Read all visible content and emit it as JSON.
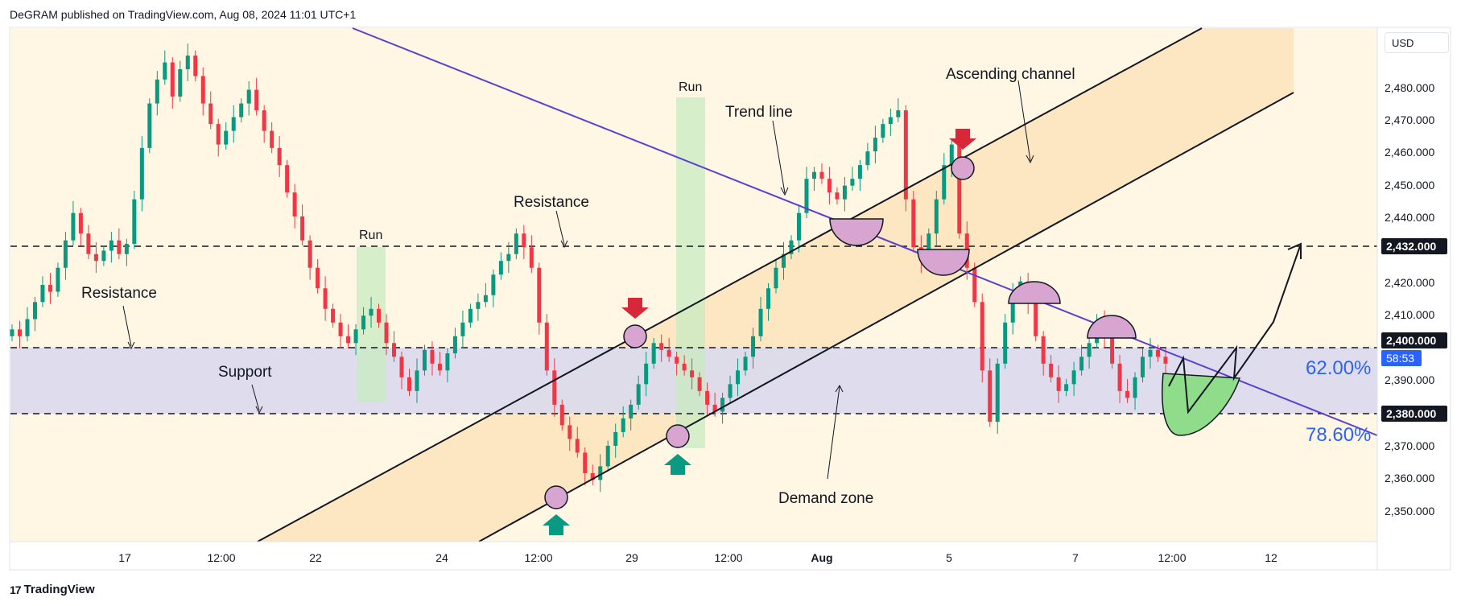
{
  "header": {
    "publish_line": "DeGRAM published on TradingView.com, Aug 08, 2024 11:01 UTC+1"
  },
  "footer": {
    "logo_text": "TradingView"
  },
  "toolbar": {
    "currency_label": "USD"
  },
  "colors": {
    "up": "#089981",
    "down": "#f23645",
    "trendline": "#5b3fd1",
    "channel_fill": "#fde6bf",
    "zone_fill": "#d9d8ee",
    "run_fill": "#c8ebc0",
    "circle_fill": "#d7a5cf",
    "green_arc": "#8fdc8a",
    "fib_text": "#2962ff",
    "badge_bg": "#131722",
    "badge_blue": "#2962ff"
  },
  "chart_data": {
    "type": "candlestick",
    "symbol_currency": "USD",
    "ylim": [
      2340,
      2490
    ],
    "y_ticks": [
      {
        "value": 2350,
        "label": "2,350.000"
      },
      {
        "value": 2360,
        "label": "2,360.000"
      },
      {
        "value": 2370,
        "label": "2,370.000"
      },
      {
        "value": 2390,
        "label": "2,390.000"
      },
      {
        "value": 2410,
        "label": "2,410.000"
      },
      {
        "value": 2420,
        "label": "2,420.000"
      },
      {
        "value": 2440,
        "label": "2,440.000"
      },
      {
        "value": 2450,
        "label": "2,450.000"
      },
      {
        "value": 2460,
        "label": "2,460.000"
      },
      {
        "value": 2470,
        "label": "2,470.000"
      },
      {
        "value": 2480,
        "label": "2,480.000"
      }
    ],
    "x_ticks": [
      "17",
      "12:00",
      "22",
      "24",
      "12:00",
      "29",
      "12:00",
      "Aug",
      "5",
      "7",
      "12:00",
      "12"
    ],
    "price_badges": [
      {
        "value": 2432,
        "label": "2,432.000",
        "style": "dark"
      },
      {
        "value": 2400,
        "label": "2,400.000",
        "style": "dark"
      },
      {
        "value": 2397,
        "label": "58:53",
        "style": "blue"
      },
      {
        "value": 2380,
        "label": "2,380.000",
        "style": "dark"
      }
    ],
    "horizontal_levels": [
      2432,
      2400,
      2380
    ],
    "demand_zone": [
      2380,
      2400
    ],
    "fib_labels": [
      {
        "value": 2394,
        "label": "62.00%"
      },
      {
        "value": 2375,
        "label": "78.60%"
      }
    ],
    "annotations": [
      {
        "text": "Ascending channel",
        "value": 2480
      },
      {
        "text": "Trend line",
        "value": 2467
      },
      {
        "text": "Resistance",
        "value": 2446
      },
      {
        "text": "Resistance",
        "value": 2416
      },
      {
        "text": "Support",
        "value": 2393
      },
      {
        "text": "Demand zone",
        "value": 2357
      }
    ],
    "run_labels": [
      "Run",
      "Run"
    ],
    "candles_close": [
      2402,
      2400,
      2405,
      2410,
      2415,
      2413,
      2420,
      2428,
      2436,
      2430,
      2424,
      2422,
      2425,
      2428,
      2424,
      2427,
      2440,
      2455,
      2468,
      2475,
      2480,
      2470,
      2478,
      2482,
      2476,
      2468,
      2462,
      2456,
      2460,
      2464,
      2468,
      2472,
      2466,
      2460,
      2455,
      2450,
      2442,
      2435,
      2428,
      2420,
      2414,
      2408,
      2404,
      2400,
      2398,
      2402,
      2406,
      2408,
      2404,
      2398,
      2394,
      2388,
      2384,
      2390,
      2396,
      2392,
      2390,
      2395,
      2400,
      2404,
      2408,
      2410,
      2412,
      2418,
      2422,
      2424,
      2430,
      2426,
      2420,
      2404,
      2390,
      2380,
      2374,
      2370,
      2366,
      2360,
      2358,
      2362,
      2368,
      2372,
      2376,
      2380,
      2386,
      2392,
      2398,
      2396,
      2394,
      2392,
      2390,
      2388,
      2384,
      2380,
      2378,
      2382,
      2386,
      2390,
      2394,
      2400,
      2408,
      2414,
      2420,
      2424,
      2428,
      2436,
      2446,
      2448,
      2446,
      2442,
      2440,
      2444,
      2446,
      2450,
      2454,
      2458,
      2462,
      2464,
      2466,
      2440,
      2426,
      2422,
      2430,
      2440,
      2450,
      2456,
      2430,
      2420,
      2410,
      2390,
      2375,
      2392,
      2404,
      2412,
      2416,
      2410,
      2400,
      2392,
      2388,
      2384,
      2386,
      2390,
      2394,
      2398,
      2404,
      2400,
      2392,
      2384,
      2382,
      2388,
      2394,
      2396,
      2394,
      2392
    ],
    "markers": [
      {
        "type": "arrow-down",
        "value": 2412
      },
      {
        "type": "arrow-down",
        "value": 2465
      },
      {
        "type": "arrow-up",
        "value": 2343
      },
      {
        "type": "arrow-up",
        "value": 2362
      }
    ]
  }
}
